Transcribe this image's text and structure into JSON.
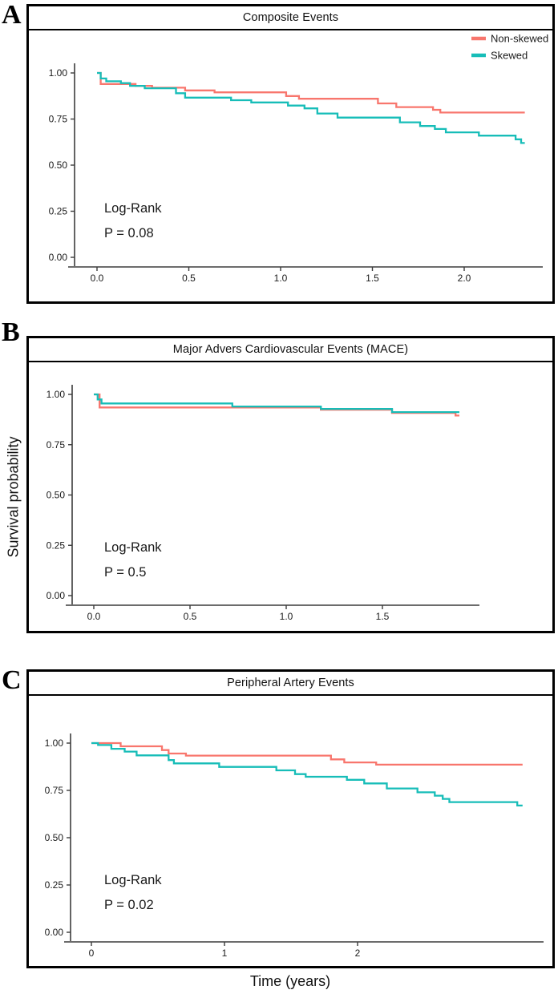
{
  "figure": {
    "panel_letters": [
      "A",
      "B",
      "C"
    ],
    "y_axis_label": "Survival probability",
    "x_axis_label": "Time (years)",
    "legend": {
      "position": "top-right-panel-A",
      "items": [
        {
          "label": "Non-skewed",
          "color": "#f8766d"
        },
        {
          "label": "Skewed",
          "color": "#17bdb8"
        }
      ]
    },
    "colors": {
      "non_skewed": "#f8766d",
      "skewed": "#17bdb8",
      "axis": "#3c3c3c"
    }
  },
  "chart_data": [
    {
      "panel": "A",
      "type": "line",
      "subtype": "kaplan-meier-step",
      "title": "Composite Events",
      "stat_label": "Log-Rank",
      "p_value": "P = 0.08",
      "x_ticks": [
        0,
        0.5,
        1,
        1.5,
        2
      ],
      "x_tick_labels": [
        "0.0",
        "0.5",
        "1.0",
        "1.5",
        "2.0"
      ],
      "y_ticks": [
        0,
        0.25,
        0.5,
        0.75,
        1
      ],
      "y_tick_labels": [
        "0.00",
        "0.25",
        "0.50",
        "0.75",
        "1.00"
      ],
      "xlim": [
        0,
        2.43
      ],
      "ylim": [
        0,
        1.0
      ],
      "end_time": 2.33,
      "legend_visible": true,
      "series": [
        {
          "name": "Non-skewed",
          "color": "#f8766d",
          "points": [
            [
              0,
              1.0
            ],
            [
              0.02,
              0.94
            ],
            [
              0.21,
              0.93
            ],
            [
              0.3,
              0.92
            ],
            [
              0.48,
              0.905
            ],
            [
              0.64,
              0.895
            ],
            [
              1.03,
              0.875
            ],
            [
              1.1,
              0.86
            ],
            [
              1.53,
              0.835
            ],
            [
              1.63,
              0.815
            ],
            [
              1.83,
              0.8
            ],
            [
              1.87,
              0.785
            ]
          ]
        },
        {
          "name": "Skewed",
          "color": "#17bdb8",
          "points": [
            [
              0,
              1.0
            ],
            [
              0.02,
              0.97
            ],
            [
              0.05,
              0.955
            ],
            [
              0.13,
              0.945
            ],
            [
              0.18,
              0.93
            ],
            [
              0.26,
              0.917
            ],
            [
              0.43,
              0.89
            ],
            [
              0.48,
              0.866
            ],
            [
              0.73,
              0.852
            ],
            [
              0.84,
              0.84
            ],
            [
              1.04,
              0.823
            ],
            [
              1.13,
              0.808
            ],
            [
              1.2,
              0.78
            ],
            [
              1.31,
              0.758
            ],
            [
              1.65,
              0.732
            ],
            [
              1.76,
              0.712
            ],
            [
              1.84,
              0.696
            ],
            [
              1.9,
              0.678
            ],
            [
              2.08,
              0.66
            ],
            [
              2.28,
              0.64
            ],
            [
              2.31,
              0.62
            ]
          ]
        }
      ]
    },
    {
      "panel": "B",
      "type": "line",
      "subtype": "kaplan-meier-step",
      "title": "Major Advers Cardiovascular Events (MACE)",
      "stat_label": "Log-Rank",
      "p_value": "P = 0.5",
      "x_ticks": [
        0,
        0.5,
        1,
        1.5
      ],
      "x_tick_labels": [
        "0.0",
        "0.5",
        "1.0",
        "1.5"
      ],
      "y_ticks": [
        0,
        0.25,
        0.5,
        0.75,
        1
      ],
      "y_tick_labels": [
        "0.00",
        "0.25",
        "0.50",
        "0.75",
        "1.00"
      ],
      "xlim": [
        0,
        2.0
      ],
      "ylim": [
        0,
        1.0
      ],
      "end_time": 1.9,
      "legend_visible": false,
      "series": [
        {
          "name": "Non-skewed",
          "color": "#f8766d",
          "points": [
            [
              0,
              1.0
            ],
            [
              0.03,
              0.935
            ],
            [
              1.18,
              0.924
            ],
            [
              1.55,
              0.908
            ],
            [
              1.88,
              0.895
            ]
          ]
        },
        {
          "name": "Skewed",
          "color": "#17bdb8",
          "points": [
            [
              0,
              1.0
            ],
            [
              0.02,
              0.975
            ],
            [
              0.04,
              0.955
            ],
            [
              0.72,
              0.94
            ],
            [
              1.18,
              0.928
            ],
            [
              1.55,
              0.912
            ]
          ]
        }
      ]
    },
    {
      "panel": "C",
      "type": "line",
      "subtype": "kaplan-meier-step",
      "title": "Peripheral Artery Events",
      "stat_label": "Log-Rank",
      "p_value": "P = 0.02",
      "x_ticks": [
        0,
        1,
        2
      ],
      "x_tick_labels": [
        "0",
        "1",
        "2"
      ],
      "y_ticks": [
        0,
        0.25,
        0.5,
        0.75,
        1
      ],
      "y_tick_labels": [
        "0.00",
        "0.25",
        "0.50",
        "0.75",
        "1.00"
      ],
      "xlim": [
        0,
        3.4
      ],
      "ylim": [
        0,
        1.0
      ],
      "end_time": 3.24,
      "legend_visible": false,
      "series": [
        {
          "name": "Non-skewed",
          "color": "#f8766d",
          "points": [
            [
              0,
              1.0
            ],
            [
              0.22,
              0.983
            ],
            [
              0.53,
              0.963
            ],
            [
              0.58,
              0.945
            ],
            [
              0.71,
              0.934
            ],
            [
              1.8,
              0.914
            ],
            [
              1.9,
              0.898
            ],
            [
              2.14,
              0.886
            ]
          ]
        },
        {
          "name": "Skewed",
          "color": "#17bdb8",
          "points": [
            [
              0,
              1.0
            ],
            [
              0.05,
              0.99
            ],
            [
              0.15,
              0.97
            ],
            [
              0.25,
              0.955
            ],
            [
              0.34,
              0.935
            ],
            [
              0.58,
              0.91
            ],
            [
              0.62,
              0.893
            ],
            [
              0.96,
              0.874
            ],
            [
              1.39,
              0.856
            ],
            [
              1.53,
              0.836
            ],
            [
              1.61,
              0.822
            ],
            [
              1.92,
              0.806
            ],
            [
              2.05,
              0.787
            ],
            [
              2.22,
              0.76
            ],
            [
              2.45,
              0.74
            ],
            [
              2.58,
              0.722
            ],
            [
              2.64,
              0.705
            ],
            [
              2.69,
              0.688
            ],
            [
              3.2,
              0.67
            ]
          ]
        }
      ]
    }
  ]
}
